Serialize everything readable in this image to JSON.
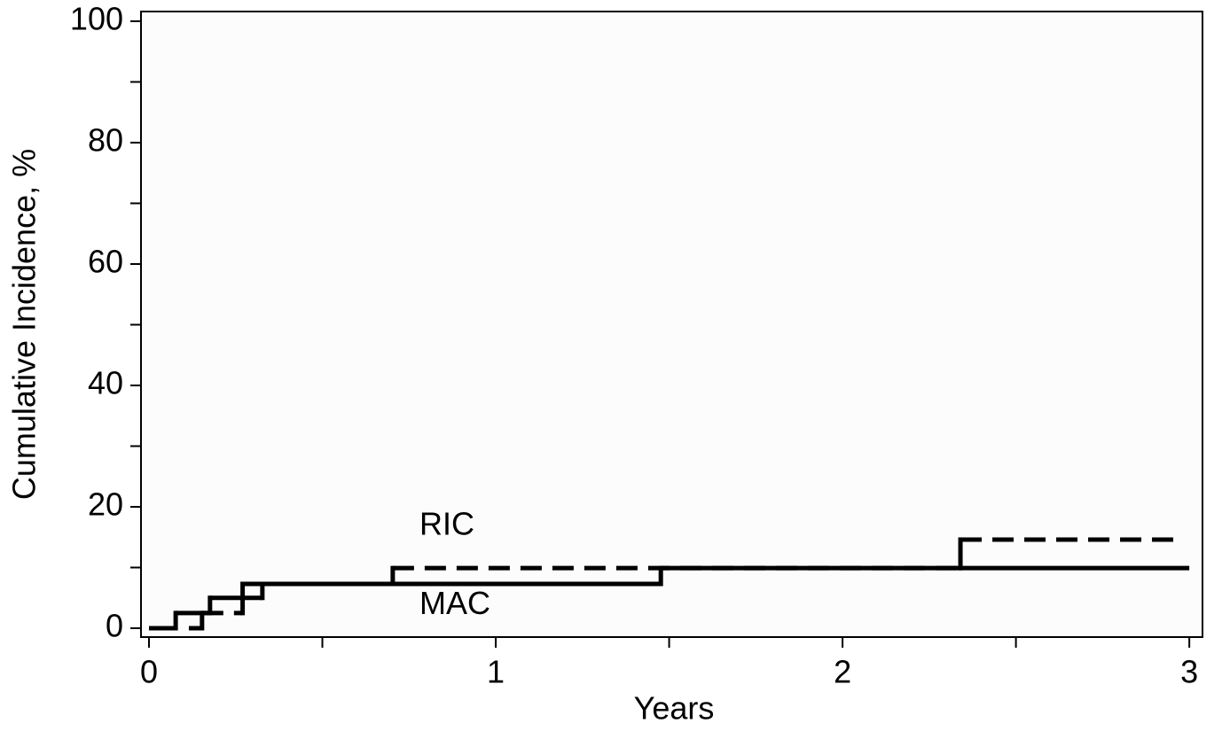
{
  "chart_data": {
    "type": "step",
    "xlabel": "Years",
    "ylabel": "Cumulative Incidence, %",
    "xlim": [
      -0.023,
      3.038
    ],
    "ylim": [
      -1.46,
      101.6
    ],
    "xticks": [
      0,
      1,
      2,
      3
    ],
    "xticks_minor": [
      0.5,
      1.5,
      2.5
    ],
    "yticks": [
      0,
      20,
      40,
      60,
      80,
      100
    ],
    "yticks_minor": [
      10,
      30,
      50,
      70,
      90
    ],
    "series": [
      {
        "name": "MAC",
        "color": "#000000",
        "dash": false,
        "x": [
          0,
          0.077,
          0.176,
          0.327,
          1.476,
          3.0
        ],
        "values": [
          0,
          2.5,
          5.0,
          7.3,
          9.9,
          9.9
        ]
      },
      {
        "name": "RIC",
        "color": "#000000",
        "dash": true,
        "x": [
          0.115,
          0.153,
          0.27,
          0.703,
          2.34,
          2.97
        ],
        "values": [
          0,
          2.5,
          7.3,
          9.9,
          14.6,
          14.6
        ]
      }
    ]
  }
}
